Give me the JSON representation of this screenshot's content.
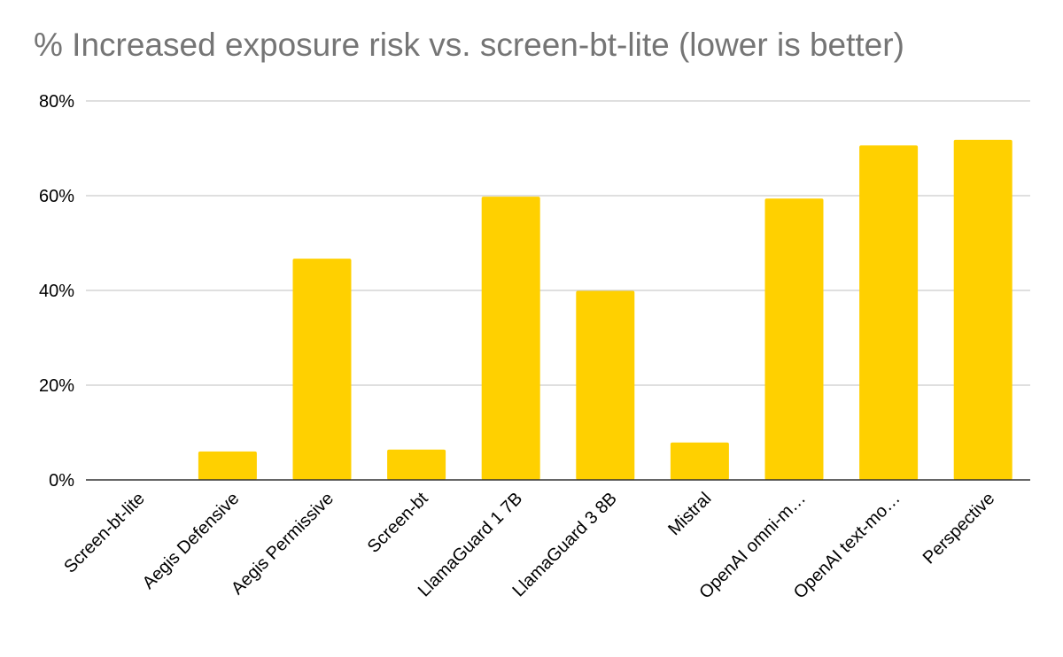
{
  "chart_data": {
    "type": "bar",
    "title": "% Increased exposure risk vs. screen-bt-lite (lower is better)",
    "xlabel": "",
    "ylabel": "",
    "categories": [
      "Screen-bt-lite",
      "Aegis Defensive",
      "Aegis Permissive",
      "Screen-bt",
      "LlamaGuard 1 7B",
      "LlamaGuard 3 8B",
      "Mistral",
      "OpenAI omni-m…",
      "OpenAI text-mo…",
      "Perspective"
    ],
    "values": [
      0,
      6.0,
      46.7,
      6.4,
      59.8,
      39.9,
      7.9,
      59.4,
      70.6,
      71.8
    ],
    "ylim": [
      0,
      80
    ],
    "yticks": [
      0,
      20,
      40,
      60,
      80
    ],
    "ytick_labels": [
      "0%",
      "20%",
      "40%",
      "60%",
      "80%"
    ],
    "grid": true,
    "legend": "none",
    "colors": {
      "bar": "#FFD000",
      "grid": "#CCCCCC",
      "axis": "#333333",
      "title": "#757575"
    }
  }
}
